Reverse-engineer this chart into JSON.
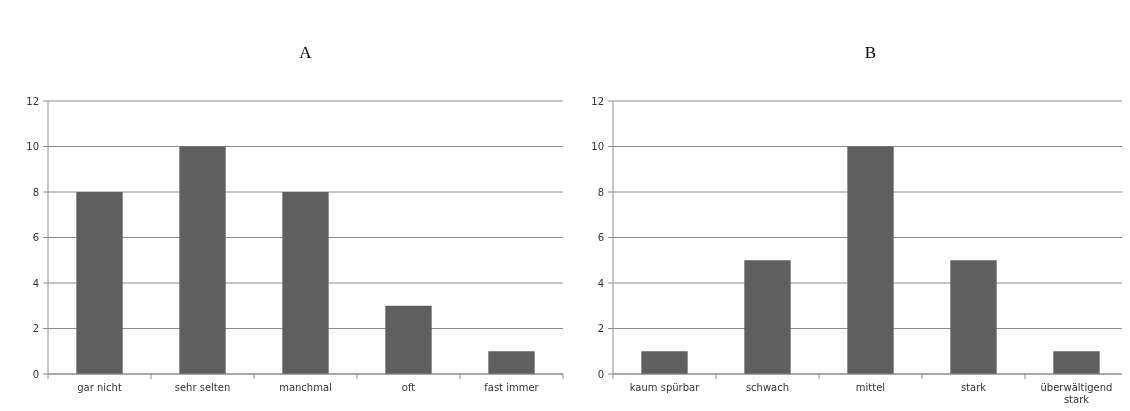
{
  "chart_data": [
    {
      "type": "bar",
      "title": "A",
      "categories": [
        "gar nicht",
        "sehr selten",
        "manchmal",
        "oft",
        "fast immer"
      ],
      "values": [
        8,
        10,
        8,
        3,
        1
      ],
      "color": "#5f5f5f",
      "ylim": [
        0,
        12
      ],
      "yticks": [
        0,
        2,
        4,
        6,
        8,
        10,
        12
      ],
      "grid": "y"
    },
    {
      "type": "bar",
      "title": "B",
      "categories": [
        "kaum spürbar",
        "schwach",
        "mittel",
        "stark",
        "überwältigend stark"
      ],
      "values": [
        1,
        5,
        10,
        5,
        1
      ],
      "color": "#5f5f5f",
      "ylim": [
        0,
        12
      ],
      "yticks": [
        0,
        2,
        4,
        6,
        8,
        10,
        12
      ],
      "grid": "y"
    }
  ]
}
